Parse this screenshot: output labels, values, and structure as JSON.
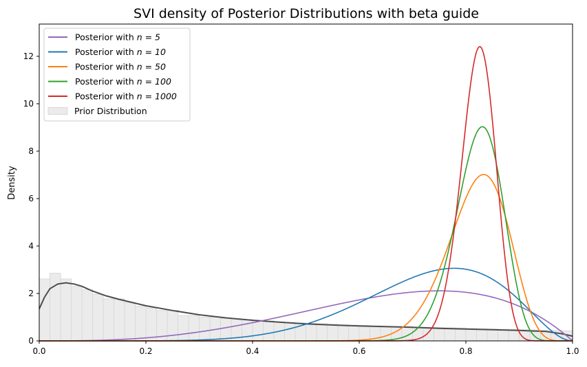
{
  "chart_data": {
    "type": "line",
    "title": "SVI density of Posterior Distributions with beta guide",
    "xlabel": "",
    "ylabel": "Density",
    "xlim": [
      0,
      1
    ],
    "ylim": [
      0,
      13.36
    ],
    "xticks": [
      "0.0",
      "0.2",
      "0.4",
      "0.6",
      "0.8",
      "1.0"
    ],
    "yticks": [
      "0",
      "2",
      "4",
      "6",
      "8",
      "10",
      "12"
    ],
    "legend_position": "top-left",
    "series": [
      {
        "name": "Posterior with n = 5",
        "label_prefix": "Posterior with ",
        "label_n": "n = 5",
        "color": "#9467bd",
        "distribution": "beta",
        "alpha": 4,
        "beta": 2
      },
      {
        "name": "Posterior with n = 10",
        "label_prefix": "Posterior with ",
        "label_n": "n = 10",
        "color": "#1f77b4",
        "distribution": "beta",
        "alpha": 8,
        "beta": 3
      },
      {
        "name": "Posterior with n = 50",
        "label_prefix": "Posterior with ",
        "label_n": "n = 50",
        "color": "#ff7f0e",
        "distribution": "beta",
        "alpha": 36,
        "beta": 8
      },
      {
        "name": "Posterior with n = 100",
        "label_prefix": "Posterior with ",
        "label_n": "n = 100",
        "color": "#2ca02c",
        "distribution": "beta",
        "alpha": 60,
        "beta": 13
      },
      {
        "name": "Posterior with n = 1000",
        "label_prefix": "Posterior with ",
        "label_n": "n = 1000",
        "color": "#d62728",
        "distribution": "beta",
        "alpha": 115,
        "beta": 25
      }
    ],
    "prior": {
      "name": "Prior Distribution",
      "fill": "#ebebeb",
      "edge": "#d9d9d9",
      "bin_width": 0.02,
      "histogram": [
        2.61,
        2.85,
        2.61,
        2.3,
        2.15,
        1.97,
        1.77,
        1.77,
        1.62,
        1.46,
        1.39,
        1.28,
        1.28,
        1.07,
        1.07,
        1.0,
        1.0,
        0.95,
        0.93,
        0.9,
        0.86,
        0.84,
        0.8,
        0.78,
        0.76,
        0.74,
        0.72,
        0.7,
        0.68,
        0.66,
        0.65,
        0.63,
        0.62,
        0.61,
        0.6,
        0.58,
        0.57,
        0.56,
        0.55,
        0.54,
        0.52,
        0.51,
        0.5,
        0.49,
        0.48,
        0.47,
        0.46,
        0.45,
        0.44,
        0.42
      ],
      "kde_color": "#4d4d4d",
      "kde": [
        [
          0,
          1.35
        ],
        [
          0.01,
          1.85
        ],
        [
          0.02,
          2.2
        ],
        [
          0.035,
          2.4
        ],
        [
          0.05,
          2.45
        ],
        [
          0.065,
          2.4
        ],
        [
          0.08,
          2.3
        ],
        [
          0.1,
          2.1
        ],
        [
          0.125,
          1.9
        ],
        [
          0.15,
          1.75
        ],
        [
          0.2,
          1.48
        ],
        [
          0.25,
          1.28
        ],
        [
          0.3,
          1.1
        ],
        [
          0.35,
          0.97
        ],
        [
          0.4,
          0.87
        ],
        [
          0.45,
          0.79
        ],
        [
          0.5,
          0.72
        ],
        [
          0.55,
          0.67
        ],
        [
          0.6,
          0.63
        ],
        [
          0.65,
          0.6
        ],
        [
          0.7,
          0.57
        ],
        [
          0.75,
          0.53
        ],
        [
          0.8,
          0.5
        ],
        [
          0.85,
          0.47
        ],
        [
          0.9,
          0.44
        ],
        [
          0.95,
          0.4
        ],
        [
          0.98,
          0.3
        ],
        [
          1.0,
          0.2
        ]
      ]
    }
  }
}
